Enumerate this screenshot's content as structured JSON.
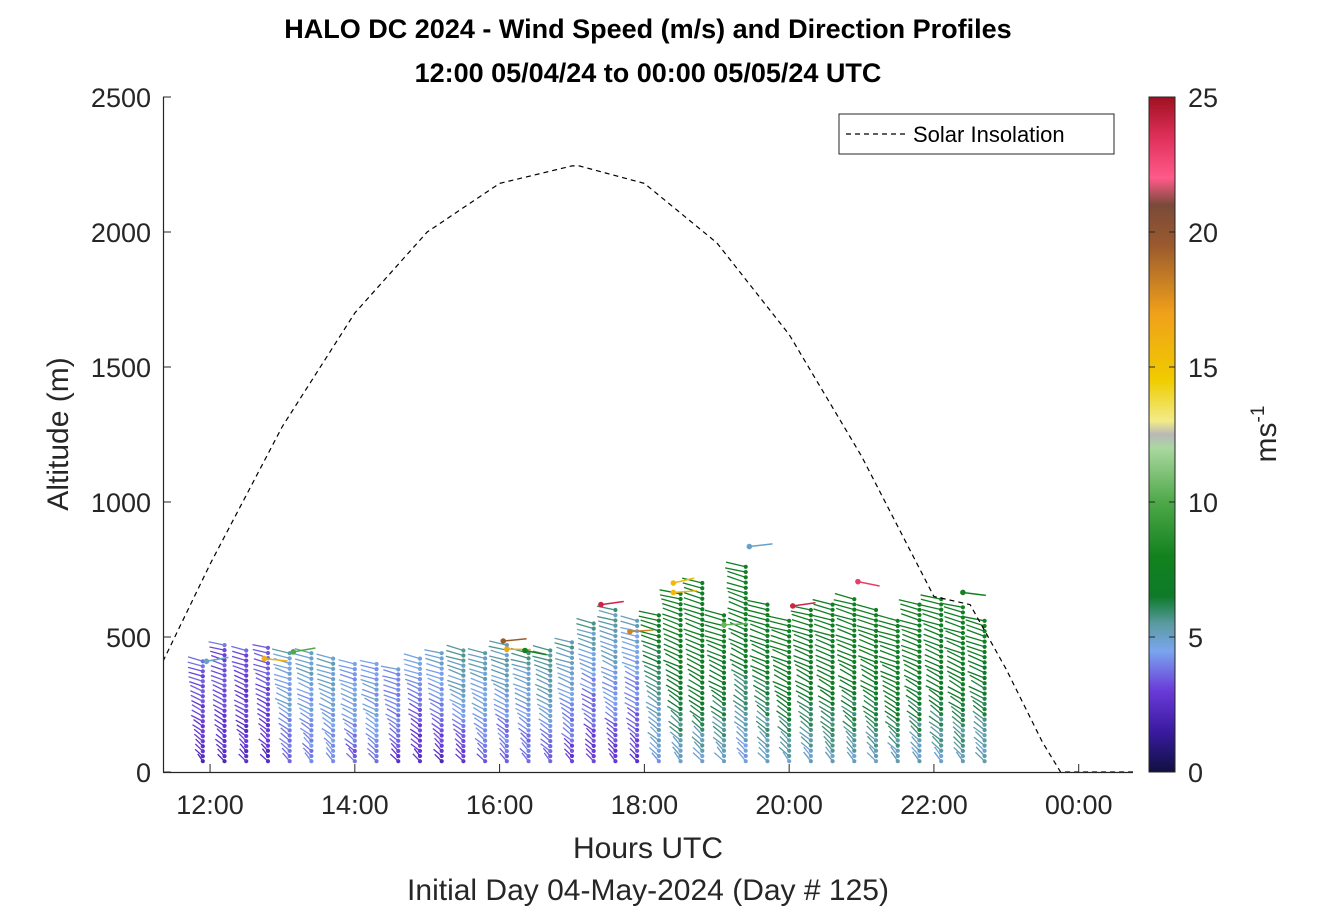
{
  "chart_data": {
    "type": "scatter",
    "title": "HALO DC 2024 - Wind Speed (m/s) and Direction Profiles",
    "subtitle": "12:00 05/04/24 to 00:00 05/05/24  UTC",
    "xlabel": "Hours UTC",
    "ylabel": "Altitude (m)",
    "footer": "Initial Day 04-May-2024 (Day # 125)",
    "xlim": [
      11.35,
      24.75
    ],
    "ylim": [
      0,
      2500
    ],
    "x_tick_labels": [
      "12:00",
      "14:00",
      "16:00",
      "18:00",
      "20:00",
      "22:00",
      "00:00"
    ],
    "x_tick_values": [
      12,
      14,
      16,
      18,
      20,
      22,
      24
    ],
    "y_tick_labels": [
      "0",
      "500",
      "1000",
      "1500",
      "2000",
      "2500"
    ],
    "y_tick_values": [
      0,
      500,
      1000,
      1500,
      2000,
      2500
    ],
    "grid": false,
    "legend": {
      "entries": [
        "Solar Insolation"
      ],
      "placement": "top-right"
    },
    "colorbar": {
      "label_base": "ms",
      "label_exp": "-1",
      "range": [
        0,
        25
      ],
      "tick_labels": [
        "0",
        "5",
        "10",
        "15",
        "20",
        "25"
      ],
      "tick_values": [
        0,
        5,
        10,
        15,
        20,
        25
      ],
      "colormap_stops": [
        [
          0,
          "#101040"
        ],
        [
          1.5,
          "#3a1aa0"
        ],
        [
          3,
          "#6a3ad8"
        ],
        [
          4.5,
          "#7aa6ee"
        ],
        [
          5.5,
          "#5a9aa0"
        ],
        [
          6.5,
          "#0e7a2a"
        ],
        [
          8,
          "#12821e"
        ],
        [
          10,
          "#4fa84a"
        ],
        [
          12,
          "#a9d8a0"
        ],
        [
          12.5,
          "#b8b8b8"
        ],
        [
          13,
          "#f2ec8a"
        ],
        [
          14.5,
          "#f0cc00"
        ],
        [
          17,
          "#f0a01a"
        ],
        [
          19.5,
          "#9b5a2e"
        ],
        [
          21,
          "#7a4a3a"
        ],
        [
          22,
          "#ff5a8a"
        ],
        [
          23.5,
          "#e0305a"
        ],
        [
          25,
          "#a01020"
        ]
      ]
    },
    "solar_insolation": {
      "name": "Solar Insolation",
      "style": "dashed",
      "x": [
        11.35,
        12.0,
        13.0,
        14.0,
        15.0,
        16.0,
        17.0,
        17.1,
        18.0,
        19.0,
        20.0,
        21.0,
        22.0,
        22.5,
        23.0,
        23.5,
        23.75,
        24.75
      ],
      "y": [
        410,
        770,
        1280,
        1700,
        2000,
        2180,
        2245,
        2245,
        2180,
        1960,
        1620,
        1170,
        650,
        620,
        380,
        110,
        0,
        0
      ]
    },
    "wind_profiles": {
      "description_units": "speed in m/s, altitude in m",
      "times": [
        11.9,
        12.2,
        12.5,
        12.8,
        13.1,
        13.4,
        13.7,
        14.0,
        14.3,
        14.6,
        14.9,
        15.2,
        15.5,
        15.8,
        16.1,
        16.4,
        16.7,
        17.0,
        17.3,
        17.6,
        17.9,
        18.2,
        18.5,
        18.8,
        19.1,
        19.4,
        19.7,
        20.0,
        20.3,
        20.6,
        20.9,
        21.2,
        21.5,
        21.8,
        22.1,
        22.4,
        22.7
      ],
      "top_altitude": [
        410,
        470,
        450,
        460,
        440,
        440,
        420,
        400,
        400,
        380,
        420,
        440,
        450,
        440,
        470,
        440,
        450,
        480,
        550,
        600,
        560,
        580,
        660,
        700,
        580,
        760,
        620,
        560,
        600,
        620,
        640,
        600,
        560,
        620,
        640,
        610,
        560
      ],
      "speed_profile": [
        [
          2.5,
          3.0,
          3.5
        ],
        [
          2.5,
          3.0,
          3.5
        ],
        [
          2.5,
          3.0,
          3.5
        ],
        [
          2.5,
          3.0,
          3.5
        ],
        [
          3.5,
          4.5,
          5.0
        ],
        [
          4.0,
          4.5,
          5.0
        ],
        [
          4.0,
          4.5,
          5.0
        ],
        [
          3.5,
          4.5,
          4.5
        ],
        [
          3.5,
          4.5,
          4.5
        ],
        [
          3.0,
          4.0,
          4.5
        ],
        [
          2.5,
          3.5,
          4.5
        ],
        [
          2.5,
          4.0,
          5.0
        ],
        [
          3.0,
          4.5,
          5.5
        ],
        [
          3.5,
          4.5,
          5.5
        ],
        [
          3.5,
          4.5,
          5.5
        ],
        [
          3.5,
          4.5,
          5.5
        ],
        [
          3.5,
          5.0,
          5.5
        ],
        [
          3.0,
          4.5,
          5.5
        ],
        [
          3.0,
          4.0,
          5.5
        ],
        [
          3.0,
          4.5,
          5.5
        ],
        [
          3.0,
          4.0,
          5.0
        ],
        [
          4.5,
          5.5,
          7.5
        ],
        [
          5.0,
          7.0,
          7.5
        ],
        [
          5.0,
          7.0,
          7.5
        ],
        [
          5.0,
          6.5,
          7.5
        ],
        [
          4.5,
          6.5,
          7.5
        ],
        [
          5.0,
          6.5,
          7.5
        ],
        [
          5.0,
          7.0,
          7.5
        ],
        [
          5.0,
          7.0,
          7.5
        ],
        [
          5.0,
          7.0,
          7.5
        ],
        [
          5.0,
          7.0,
          7.5
        ],
        [
          5.0,
          7.0,
          7.5
        ],
        [
          5.0,
          7.0,
          7.5
        ],
        [
          5.0,
          7.0,
          7.5
        ],
        [
          5.0,
          7.0,
          7.5
        ],
        [
          5.0,
          7.0,
          7.5
        ],
        [
          5.0,
          6.5,
          7.5
        ]
      ],
      "outliers": [
        {
          "x": 11.95,
          "y": 410,
          "speed": 5.0
        },
        {
          "x": 12.75,
          "y": 420,
          "speed": 16.0
        },
        {
          "x": 13.15,
          "y": 445,
          "speed": 10.0
        },
        {
          "x": 16.05,
          "y": 485,
          "speed": 19.5
        },
        {
          "x": 16.1,
          "y": 455,
          "speed": 16.5
        },
        {
          "x": 16.35,
          "y": 450,
          "speed": 8.0
        },
        {
          "x": 17.4,
          "y": 620,
          "speed": 24.0
        },
        {
          "x": 17.8,
          "y": 520,
          "speed": 18.0
        },
        {
          "x": 18.4,
          "y": 700,
          "speed": 15.5
        },
        {
          "x": 18.4,
          "y": 665,
          "speed": 15.5
        },
        {
          "x": 19.1,
          "y": 545,
          "speed": 10.5
        },
        {
          "x": 19.45,
          "y": 835,
          "speed": 5.0
        },
        {
          "x": 20.05,
          "y": 615,
          "speed": 24.0
        },
        {
          "x": 20.95,
          "y": 705,
          "speed": 23.0
        },
        {
          "x": 22.4,
          "y": 665,
          "speed": 8.0
        }
      ]
    }
  }
}
